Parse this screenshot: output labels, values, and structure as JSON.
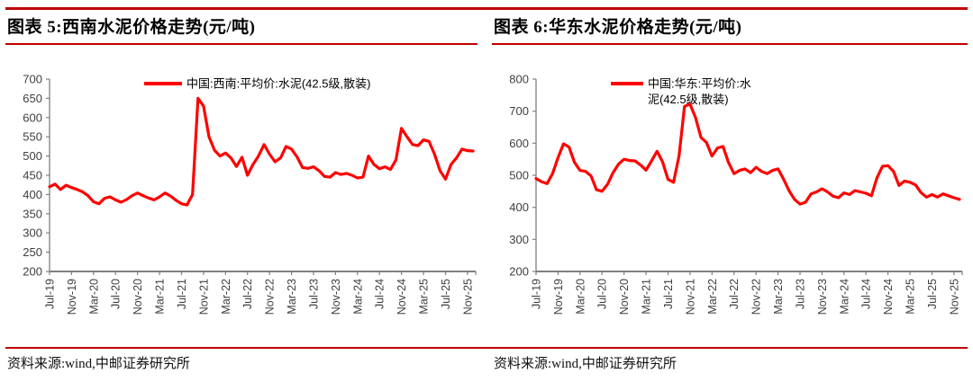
{
  "page": {
    "accent_red": "#c00000",
    "series_red": "#ff0000",
    "sources": [
      "资料来源:wind,中邮证券研究所",
      "资料来源:wind,中邮证券研究所"
    ]
  },
  "chart_data": [
    {
      "type": "line",
      "title": "图表 5:西南水泥价格走势(元/吨)",
      "legend_lines": [
        "中国:西南:平均价:水泥(42.5级,散装)"
      ],
      "legend_position": "top",
      "grid": false,
      "x_unit": "month",
      "x_range": [
        "Jul-19",
        "Dec-25"
      ],
      "x_tick_labels": [
        "Jul-19",
        "Nov-19",
        "Mar-20",
        "Jul-20",
        "Nov-20",
        "Mar-21",
        "Jul-21",
        "Nov-21",
        "Mar-22",
        "Jul-22",
        "Nov-22",
        "Mar-23",
        "Jul-23",
        "Nov-23",
        "Mar-24",
        "Jul-24",
        "Nov-24",
        "Mar-25",
        "Jul-25",
        "Nov-25"
      ],
      "ylim": [
        200,
        700
      ],
      "yticks": [
        200,
        250,
        300,
        350,
        400,
        450,
        500,
        550,
        600,
        650,
        700
      ],
      "series": [
        {
          "name": "中国:西南:平均价:水泥(42.5级,散装)",
          "color": "#ff0000",
          "values": [
            420,
            427,
            413,
            424,
            418,
            413,
            407,
            397,
            381,
            376,
            390,
            394,
            386,
            380,
            387,
            397,
            404,
            397,
            391,
            386,
            394,
            404,
            396,
            385,
            376,
            373,
            400,
            650,
            630,
            550,
            515,
            500,
            508,
            495,
            473,
            497,
            450,
            478,
            500,
            530,
            505,
            485,
            495,
            525,
            518,
            498,
            470,
            468,
            472,
            462,
            447,
            445,
            457,
            452,
            455,
            450,
            443,
            445,
            500,
            478,
            467,
            472,
            465,
            490,
            572,
            550,
            530,
            527,
            542,
            538,
            505,
            462,
            440,
            478,
            495,
            518,
            514,
            513
          ]
        }
      ]
    },
    {
      "type": "line",
      "title": "图表 6:华东水泥价格走势(元/吨)",
      "legend_lines": [
        "中国:华东:平均价:水",
        "泥(42.5级,散装)"
      ],
      "legend_position": "top",
      "grid": false,
      "x_unit": "month",
      "x_range": [
        "Jul-19",
        "Dec-25"
      ],
      "x_tick_labels": [
        "Jul-19",
        "Nov-19",
        "Mar-20",
        "Jul-20",
        "Nov-20",
        "Mar-21",
        "Jul-21",
        "Nov-21",
        "Mar-22",
        "Jul-22",
        "Nov-22",
        "Mar-23",
        "Jul-23",
        "Nov-23",
        "Mar-24",
        "Jul-24",
        "Nov-24",
        "Mar-25",
        "Jul-25",
        "Nov-25"
      ],
      "ylim": [
        200,
        800
      ],
      "yticks": [
        200,
        300,
        400,
        500,
        600,
        700,
        800
      ],
      "series": [
        {
          "name": "中国:华东:平均价:水泥(42.5级,散装)",
          "color": "#ff0000",
          "values": [
            490,
            480,
            474,
            505,
            555,
            598,
            588,
            540,
            515,
            512,
            498,
            455,
            450,
            472,
            508,
            535,
            550,
            546,
            545,
            532,
            516,
            545,
            575,
            542,
            487,
            478,
            560,
            715,
            722,
            680,
            618,
            602,
            560,
            585,
            590,
            540,
            505,
            515,
            520,
            508,
            525,
            512,
            505,
            515,
            520,
            488,
            452,
            425,
            410,
            416,
            442,
            448,
            458,
            448,
            435,
            430,
            445,
            440,
            452,
            448,
            444,
            436,
            492,
            528,
            530,
            512,
            468,
            482,
            478,
            470,
            446,
            432,
            440,
            432,
            442,
            436,
            430,
            425
          ]
        }
      ]
    }
  ]
}
